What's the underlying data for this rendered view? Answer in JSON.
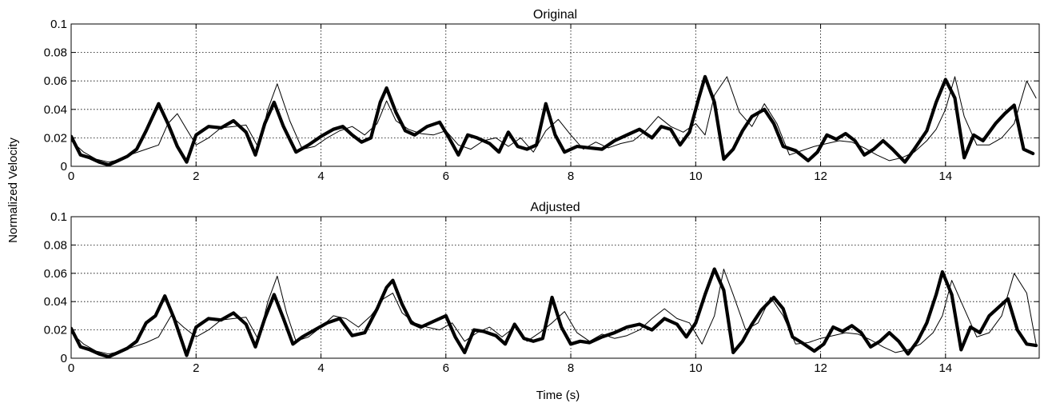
{
  "figure": {
    "ylabel": "Normalized Velocity",
    "xlabel": "Time (s)"
  },
  "chart_data": [
    {
      "type": "line",
      "title": "Original",
      "xlabel": "",
      "ylabel": "Normalized Velocity",
      "xlim": [
        0,
        15.5
      ],
      "ylim": [
        0,
        0.1
      ],
      "xticks": [
        0,
        2,
        4,
        6,
        8,
        10,
        12,
        14
      ],
      "yticks": [
        0,
        0.02,
        0.04,
        0.06,
        0.08,
        0.1
      ],
      "xtick_labels": [
        "0",
        "2",
        "4",
        "6",
        "8",
        "10",
        "12",
        "14"
      ],
      "ytick_labels": [
        "0",
        "0.02",
        "0.04",
        "0.06",
        "0.08",
        "0.1"
      ],
      "grid": true,
      "series": [
        {
          "style": "thick",
          "color": "#000000",
          "x": [
            0,
            0.15,
            0.3,
            0.45,
            0.6,
            0.75,
            0.9,
            1.05,
            1.2,
            1.4,
            1.55,
            1.7,
            1.85,
            2.0,
            2.2,
            2.4,
            2.6,
            2.8,
            2.95,
            3.1,
            3.25,
            3.4,
            3.6,
            3.8,
            4.0,
            4.2,
            4.35,
            4.5,
            4.65,
            4.8,
            4.95,
            5.05,
            5.2,
            5.35,
            5.5,
            5.7,
            5.9,
            6.05,
            6.2,
            6.35,
            6.5,
            6.7,
            6.85,
            7.0,
            7.15,
            7.3,
            7.45,
            7.6,
            7.75,
            7.9,
            8.1,
            8.3,
            8.5,
            8.7,
            8.9,
            9.1,
            9.3,
            9.45,
            9.6,
            9.75,
            9.9,
            10.05,
            10.15,
            10.3,
            10.45,
            10.6,
            10.75,
            10.9,
            11.1,
            11.25,
            11.4,
            11.6,
            11.8,
            11.95,
            12.1,
            12.25,
            12.4,
            12.55,
            12.7,
            12.85,
            13.0,
            13.15,
            13.35,
            13.5,
            13.7,
            13.85,
            14.0,
            14.15,
            14.3,
            14.45,
            14.6,
            14.8,
            14.95,
            15.1,
            15.25,
            15.4
          ],
          "y": [
            0.021,
            0.008,
            0.006,
            0.003,
            0.001,
            0.004,
            0.007,
            0.012,
            0.025,
            0.044,
            0.03,
            0.014,
            0.003,
            0.022,
            0.028,
            0.027,
            0.032,
            0.024,
            0.008,
            0.03,
            0.045,
            0.028,
            0.01,
            0.015,
            0.021,
            0.026,
            0.028,
            0.022,
            0.017,
            0.02,
            0.045,
            0.055,
            0.038,
            0.025,
            0.022,
            0.028,
            0.031,
            0.02,
            0.008,
            0.022,
            0.02,
            0.016,
            0.01,
            0.024,
            0.014,
            0.012,
            0.015,
            0.044,
            0.022,
            0.01,
            0.014,
            0.013,
            0.012,
            0.018,
            0.022,
            0.026,
            0.02,
            0.028,
            0.026,
            0.015,
            0.024,
            0.048,
            0.063,
            0.045,
            0.005,
            0.012,
            0.025,
            0.035,
            0.04,
            0.03,
            0.014,
            0.011,
            0.004,
            0.01,
            0.022,
            0.019,
            0.023,
            0.018,
            0.008,
            0.012,
            0.018,
            0.012,
            0.003,
            0.012,
            0.025,
            0.045,
            0.061,
            0.048,
            0.006,
            0.022,
            0.018,
            0.03,
            0.037,
            0.043,
            0.012,
            0.009
          ]
        },
        {
          "style": "thin",
          "color": "#000000",
          "x": [
            0,
            0.2,
            0.4,
            0.6,
            0.8,
            1.0,
            1.2,
            1.4,
            1.55,
            1.7,
            1.85,
            2.0,
            2.2,
            2.4,
            2.6,
            2.8,
            3.0,
            3.15,
            3.3,
            3.5,
            3.7,
            3.9,
            4.1,
            4.3,
            4.5,
            4.7,
            4.9,
            5.05,
            5.2,
            5.4,
            5.6,
            5.8,
            6.0,
            6.2,
            6.4,
            6.6,
            6.8,
            7.0,
            7.2,
            7.4,
            7.6,
            7.8,
            8.0,
            8.2,
            8.4,
            8.6,
            8.8,
            9.0,
            9.2,
            9.4,
            9.6,
            9.8,
            10.0,
            10.15,
            10.3,
            10.5,
            10.7,
            10.9,
            11.1,
            11.3,
            11.5,
            11.7,
            11.9,
            12.1,
            12.3,
            12.5,
            12.7,
            12.9,
            13.1,
            13.3,
            13.5,
            13.7,
            13.85,
            14.0,
            14.15,
            14.3,
            14.5,
            14.7,
            14.9,
            15.1,
            15.3,
            15.45
          ],
          "y": [
            0.018,
            0.01,
            0.005,
            0.003,
            0.005,
            0.009,
            0.012,
            0.015,
            0.03,
            0.037,
            0.026,
            0.015,
            0.02,
            0.027,
            0.028,
            0.029,
            0.013,
            0.04,
            0.058,
            0.032,
            0.012,
            0.014,
            0.02,
            0.025,
            0.028,
            0.022,
            0.03,
            0.046,
            0.032,
            0.026,
            0.023,
            0.022,
            0.025,
            0.015,
            0.012,
            0.018,
            0.02,
            0.014,
            0.02,
            0.01,
            0.025,
            0.033,
            0.022,
            0.012,
            0.017,
            0.013,
            0.016,
            0.018,
            0.025,
            0.035,
            0.028,
            0.024,
            0.03,
            0.022,
            0.05,
            0.063,
            0.038,
            0.028,
            0.044,
            0.03,
            0.008,
            0.011,
            0.014,
            0.016,
            0.018,
            0.017,
            0.013,
            0.008,
            0.004,
            0.006,
            0.01,
            0.018,
            0.026,
            0.04,
            0.063,
            0.035,
            0.015,
            0.015,
            0.02,
            0.03,
            0.06,
            0.048
          ]
        }
      ]
    },
    {
      "type": "line",
      "title": "Adjusted",
      "xlabel": "Time (s)",
      "ylabel": "Normalized Velocity",
      "xlim": [
        0,
        15.5
      ],
      "ylim": [
        0,
        0.1
      ],
      "xticks": [
        0,
        2,
        4,
        6,
        8,
        10,
        12,
        14
      ],
      "yticks": [
        0,
        0.02,
        0.04,
        0.06,
        0.08,
        0.1
      ],
      "xtick_labels": [
        "0",
        "2",
        "4",
        "6",
        "8",
        "10",
        "12",
        "14"
      ],
      "ytick_labels": [
        "0",
        "0.02",
        "0.04",
        "0.06",
        "0.08",
        "0.1"
      ],
      "grid": true,
      "series": [
        {
          "style": "thick",
          "color": "#000000",
          "x": [
            0,
            0.15,
            0.3,
            0.45,
            0.6,
            0.75,
            0.9,
            1.05,
            1.2,
            1.35,
            1.5,
            1.65,
            1.85,
            2.0,
            2.2,
            2.4,
            2.6,
            2.8,
            2.95,
            3.1,
            3.25,
            3.4,
            3.55,
            3.7,
            3.9,
            4.1,
            4.3,
            4.5,
            4.7,
            4.9,
            5.05,
            5.15,
            5.3,
            5.45,
            5.6,
            5.8,
            6.0,
            6.15,
            6.3,
            6.45,
            6.6,
            6.8,
            6.95,
            7.1,
            7.25,
            7.4,
            7.55,
            7.7,
            7.85,
            8.0,
            8.15,
            8.3,
            8.5,
            8.7,
            8.9,
            9.1,
            9.3,
            9.5,
            9.7,
            9.85,
            10.0,
            10.15,
            10.3,
            10.45,
            10.6,
            10.75,
            10.9,
            11.05,
            11.25,
            11.4,
            11.55,
            11.7,
            11.9,
            12.05,
            12.2,
            12.35,
            12.5,
            12.65,
            12.8,
            12.95,
            13.1,
            13.25,
            13.4,
            13.55,
            13.7,
            13.85,
            13.95,
            14.1,
            14.25,
            14.4,
            14.55,
            14.7,
            14.85,
            15.0,
            15.15,
            15.3,
            15.45
          ],
          "y": [
            0.021,
            0.008,
            0.006,
            0.003,
            0.001,
            0.004,
            0.007,
            0.012,
            0.025,
            0.03,
            0.044,
            0.028,
            0.002,
            0.022,
            0.028,
            0.027,
            0.032,
            0.024,
            0.008,
            0.028,
            0.045,
            0.028,
            0.01,
            0.015,
            0.02,
            0.025,
            0.028,
            0.016,
            0.018,
            0.035,
            0.05,
            0.055,
            0.038,
            0.025,
            0.022,
            0.026,
            0.03,
            0.015,
            0.004,
            0.02,
            0.019,
            0.016,
            0.01,
            0.024,
            0.014,
            0.012,
            0.014,
            0.043,
            0.022,
            0.01,
            0.012,
            0.011,
            0.015,
            0.018,
            0.022,
            0.024,
            0.02,
            0.028,
            0.024,
            0.015,
            0.025,
            0.045,
            0.063,
            0.048,
            0.004,
            0.012,
            0.024,
            0.034,
            0.043,
            0.035,
            0.015,
            0.011,
            0.005,
            0.01,
            0.022,
            0.019,
            0.023,
            0.018,
            0.008,
            0.012,
            0.018,
            0.012,
            0.003,
            0.012,
            0.025,
            0.045,
            0.061,
            0.045,
            0.006,
            0.022,
            0.018,
            0.03,
            0.036,
            0.042,
            0.02,
            0.01,
            0.009
          ]
        },
        {
          "style": "thin",
          "color": "#000000",
          "x": [
            0,
            0.2,
            0.4,
            0.6,
            0.8,
            1.0,
            1.2,
            1.4,
            1.6,
            1.8,
            2.0,
            2.2,
            2.4,
            2.6,
            2.8,
            3.0,
            3.15,
            3.3,
            3.45,
            3.6,
            3.8,
            4.0,
            4.2,
            4.4,
            4.6,
            4.8,
            5.0,
            5.15,
            5.3,
            5.5,
            5.7,
            5.9,
            6.1,
            6.3,
            6.5,
            6.7,
            6.9,
            7.1,
            7.3,
            7.5,
            7.7,
            7.9,
            8.1,
            8.3,
            8.5,
            8.7,
            8.9,
            9.1,
            9.3,
            9.5,
            9.7,
            9.9,
            10.1,
            10.3,
            10.45,
            10.6,
            10.8,
            11.0,
            11.2,
            11.4,
            11.6,
            11.8,
            12.0,
            12.2,
            12.4,
            12.6,
            12.8,
            13.0,
            13.2,
            13.4,
            13.6,
            13.8,
            13.95,
            14.1,
            14.3,
            14.5,
            14.7,
            14.9,
            15.1,
            15.3,
            15.45
          ],
          "y": [
            0.018,
            0.01,
            0.005,
            0.003,
            0.005,
            0.008,
            0.011,
            0.015,
            0.03,
            0.022,
            0.015,
            0.02,
            0.027,
            0.028,
            0.029,
            0.013,
            0.04,
            0.058,
            0.032,
            0.012,
            0.015,
            0.022,
            0.03,
            0.028,
            0.022,
            0.03,
            0.042,
            0.046,
            0.032,
            0.025,
            0.022,
            0.02,
            0.025,
            0.012,
            0.018,
            0.022,
            0.015,
            0.022,
            0.012,
            0.018,
            0.025,
            0.033,
            0.018,
            0.012,
            0.017,
            0.014,
            0.016,
            0.02,
            0.028,
            0.035,
            0.028,
            0.025,
            0.01,
            0.03,
            0.063,
            0.045,
            0.02,
            0.025,
            0.043,
            0.03,
            0.01,
            0.011,
            0.014,
            0.016,
            0.018,
            0.017,
            0.013,
            0.008,
            0.004,
            0.006,
            0.01,
            0.018,
            0.03,
            0.055,
            0.035,
            0.015,
            0.018,
            0.03,
            0.06,
            0.046,
            0.01
          ]
        }
      ]
    }
  ]
}
